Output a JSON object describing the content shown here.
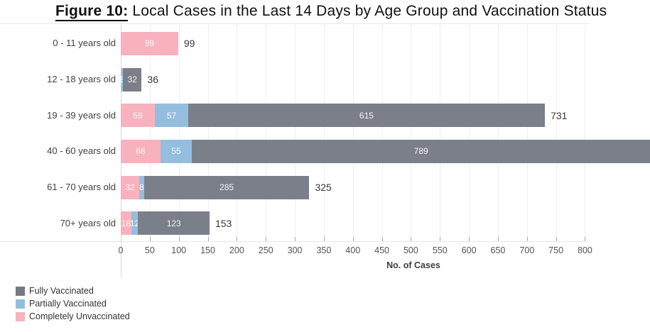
{
  "title": {
    "prefix": "Figure 10:",
    "rest": " Local Cases in the Last 14 Days by Age Group and Vaccination Status"
  },
  "axis": {
    "xlabel": "No. of Cases"
  },
  "legend": {
    "items": [
      {
        "label": "Fully Vaccinated",
        "color": "#757983"
      },
      {
        "label": "Partially Vaccinated",
        "color": "#94bedd"
      },
      {
        "label": "Completely Unvaccinated",
        "color": "#f8b2bd"
      }
    ]
  },
  "chart_data": {
    "type": "bar",
    "orientation": "horizontal",
    "stacked": true,
    "title": "Figure 10: Local Cases in the Last 14 Days by Age Group and Vaccination Status",
    "xlabel": "No. of Cases",
    "categories": [
      "0 - 11 years old",
      "12 - 18 years old",
      "19 - 39 years old",
      "40 - 60 years old",
      "61 - 70 years old",
      "70+ years old"
    ],
    "series": [
      {
        "name": "Completely Unvaccinated",
        "color": "#f8b2bd",
        "values": [
          99,
          1,
          59,
          68,
          32,
          18
        ]
      },
      {
        "name": "Partially Vaccinated",
        "color": "#94bedd",
        "values": [
          0,
          3,
          57,
          55,
          8,
          12
        ]
      },
      {
        "name": "Fully Vaccinated",
        "color": "#7b7f89",
        "values": [
          0,
          32,
          615,
          789,
          285,
          123
        ]
      }
    ],
    "total_labels": [
      "99",
      "36",
      "731",
      "",
      "325",
      "153"
    ],
    "x_ticks": [
      0,
      50,
      100,
      150,
      200,
      250,
      300,
      350,
      400,
      450,
      500,
      550,
      600,
      650,
      700,
      750,
      800
    ],
    "xlim": [
      0,
      808
    ],
    "grid": true,
    "legend_position": "bottom-left"
  }
}
